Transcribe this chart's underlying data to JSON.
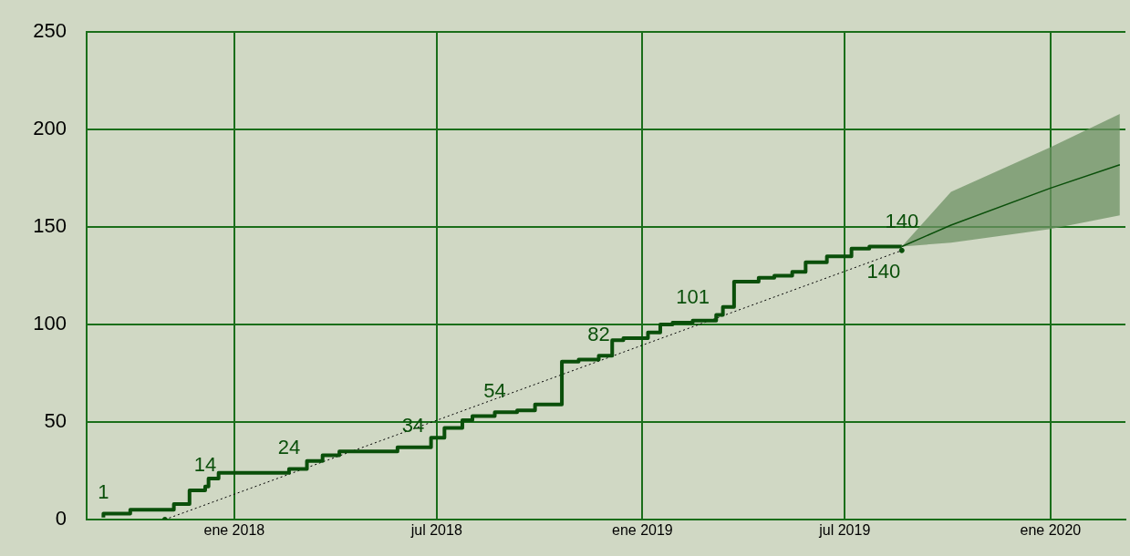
{
  "chart_data": {
    "type": "step",
    "xlim": [
      "2017-08-22",
      "2020-03-08"
    ],
    "ylim": [
      0,
      250
    ],
    "xticks": [
      {
        "value": "2018-01-01",
        "label": "ene 2018"
      },
      {
        "value": "2018-07-01",
        "label": "jul 2018"
      },
      {
        "value": "2019-01-01",
        "label": "ene 2019"
      },
      {
        "value": "2019-07-01",
        "label": "jul 2019"
      },
      {
        "value": "2020-01-01",
        "label": "ene 2020"
      }
    ],
    "yticks": [
      0,
      50,
      100,
      150,
      200,
      250
    ],
    "grid": true,
    "legend": false,
    "series": [
      {
        "type": "step",
        "color": "#0a4f0a",
        "x": [
          "2017-09-06",
          "2017-09-30",
          "2017-11-08",
          "2017-11-22",
          "2017-12-06",
          "2017-12-09",
          "2017-12-18",
          "2018-02-19",
          "2018-03-07",
          "2018-03-21",
          "2018-04-05",
          "2018-05-27",
          "2018-06-26",
          "2018-07-08",
          "2018-07-24",
          "2018-08-02",
          "2018-08-22",
          "2018-09-11",
          "2018-09-27",
          "2018-10-21",
          "2018-11-05",
          "2018-11-23",
          "2018-12-05",
          "2018-12-15",
          "2019-01-06",
          "2019-01-17",
          "2019-01-28",
          "2019-02-15",
          "2019-03-08",
          "2019-03-14",
          "2019-03-24",
          "2019-04-15",
          "2019-04-29",
          "2019-05-15",
          "2019-05-27",
          "2019-06-15",
          "2019-07-07",
          "2019-07-23",
          "2019-08-21"
        ],
        "values": [
          1,
          3,
          5,
          8,
          15,
          17,
          21,
          24,
          26,
          30,
          33,
          35,
          37,
          42,
          47,
          51,
          53,
          55,
          56,
          59,
          81,
          82,
          84,
          92,
          93,
          96,
          100,
          101,
          102,
          105,
          109,
          122,
          124,
          125,
          127,
          132,
          135,
          139,
          140
        ]
      },
      {
        "type": "line",
        "color": "#0a4f0a",
        "marker": "circle",
        "line_style": "dotted",
        "x": [
          "2017-10-31",
          "2019-08-21"
        ],
        "values": [
          0,
          138
        ]
      },
      {
        "type": "line",
        "color": "#0a4f0a",
        "x": [
          "2019-08-21",
          "2019-10-04",
          "2020-01-01",
          "2020-03-03"
        ],
        "values": [
          140,
          151,
          170,
          182
        ],
        "lower": [
          140,
          142,
          149,
          156
        ],
        "upper": [
          140,
          168,
          191,
          208
        ]
      }
    ],
    "annotations": [
      {
        "text": "1",
        "x": "2017-09-06",
        "y": 1
      },
      {
        "text": "14",
        "x": "2017-12-06",
        "y": 15
      },
      {
        "text": "24",
        "x": "2018-02-19",
        "y": 24
      },
      {
        "text": "34",
        "x": "2018-06-10",
        "y": 35
      },
      {
        "text": "54",
        "x": "2018-08-22",
        "y": 53
      },
      {
        "text": "82",
        "x": "2018-11-23",
        "y": 82
      },
      {
        "text": "101",
        "x": "2019-02-15",
        "y": 101
      },
      {
        "text": "140",
        "x": "2019-08-21",
        "y": 140
      },
      {
        "text": "140",
        "x": "2019-08-21",
        "y": 138
      }
    ]
  }
}
